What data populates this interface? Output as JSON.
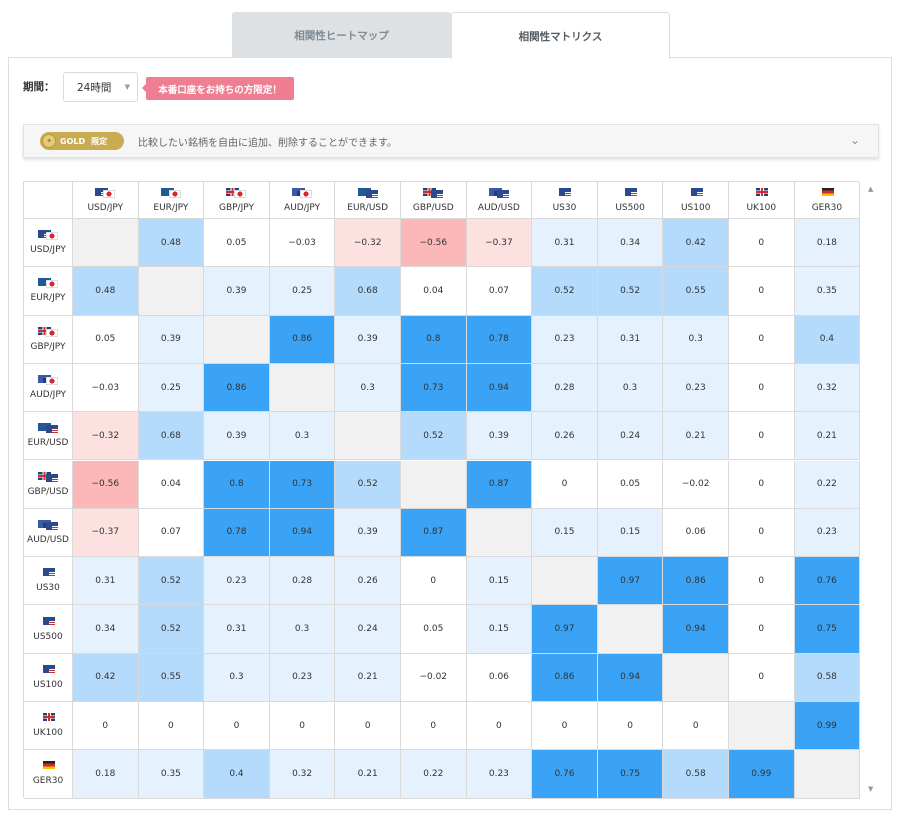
{
  "tabs": [
    {
      "label": "相関性ヒートマップ",
      "active": false
    },
    {
      "label": "相関性マトリクス",
      "active": true
    }
  ],
  "period": {
    "label": "期間：",
    "value": "24時間"
  },
  "promo": {
    "label": "本番口座をお持ちの方限定！"
  },
  "info": {
    "badge_label": "GOLD",
    "badge_limited": "限定",
    "text": "比較したい銘柄を自由に追加、削除することができます。"
  },
  "colors": {
    "strong_pos": "#3aa3f5",
    "mid_pos": "#b4dbfb",
    "weak_pos": "#e5f2fd",
    "zero": "#ffffff",
    "weak_neg": "#fde0e0",
    "mid_neg": "#fcb8b8",
    "diagonal": "#f1f1f1"
  },
  "matrix": {
    "symbols": [
      {
        "label": "USD/JPY",
        "flags": [
          "us",
          "jp"
        ]
      },
      {
        "label": "EUR/JPY",
        "flags": [
          "eu",
          "jp"
        ]
      },
      {
        "label": "GBP/JPY",
        "flags": [
          "gb",
          "jp"
        ]
      },
      {
        "label": "AUD/JPY",
        "flags": [
          "au",
          "jp"
        ]
      },
      {
        "label": "EUR/USD",
        "flags": [
          "eu",
          "us"
        ]
      },
      {
        "label": "GBP/USD",
        "flags": [
          "gb",
          "us"
        ]
      },
      {
        "label": "AUD/USD",
        "flags": [
          "au",
          "us"
        ]
      },
      {
        "label": "US30",
        "flags": [
          "us"
        ]
      },
      {
        "label": "US500",
        "flags": [
          "us"
        ]
      },
      {
        "label": "US100",
        "flags": [
          "us"
        ]
      },
      {
        "label": "UK100",
        "flags": [
          "gb"
        ]
      },
      {
        "label": "GER30",
        "flags": [
          "de"
        ]
      }
    ],
    "values": [
      [
        null,
        "0.48",
        "0.05",
        "−0.03",
        "−0.32",
        "−0.56",
        "−0.37",
        "0.31",
        "0.34",
        "0.42",
        "0",
        "0.18"
      ],
      [
        "0.48",
        null,
        "0.39",
        "0.25",
        "0.68",
        "0.04",
        "0.07",
        "0.52",
        "0.52",
        "0.55",
        "0",
        "0.35"
      ],
      [
        "0.05",
        "0.39",
        null,
        "0.86",
        "0.39",
        "0.8",
        "0.78",
        "0.23",
        "0.31",
        "0.3",
        "0",
        "0.4"
      ],
      [
        "−0.03",
        "0.25",
        "0.86",
        null,
        "0.3",
        "0.73",
        "0.94",
        "0.28",
        "0.3",
        "0.23",
        "0",
        "0.32"
      ],
      [
        "−0.32",
        "0.68",
        "0.39",
        "0.3",
        null,
        "0.52",
        "0.39",
        "0.26",
        "0.24",
        "0.21",
        "0",
        "0.21"
      ],
      [
        "−0.56",
        "0.04",
        "0.8",
        "0.73",
        "0.52",
        null,
        "0.87",
        "0",
        "0.05",
        "−0.02",
        "0",
        "0.22"
      ],
      [
        "−0.37",
        "0.07",
        "0.78",
        "0.94",
        "0.39",
        "0.87",
        null,
        "0.15",
        "0.15",
        "0.06",
        "0",
        "0.23"
      ],
      [
        "0.31",
        "0.52",
        "0.23",
        "0.28",
        "0.26",
        "0",
        "0.15",
        null,
        "0.97",
        "0.86",
        "0",
        "0.76"
      ],
      [
        "0.34",
        "0.52",
        "0.31",
        "0.3",
        "0.24",
        "0.05",
        "0.15",
        "0.97",
        null,
        "0.94",
        "0",
        "0.75"
      ],
      [
        "0.42",
        "0.55",
        "0.3",
        "0.23",
        "0.21",
        "−0.02",
        "0.06",
        "0.86",
        "0.94",
        null,
        "0",
        "0.58"
      ],
      [
        "0",
        "0",
        "0",
        "0",
        "0",
        "0",
        "0",
        "0",
        "0",
        "0",
        null,
        "0.99"
      ],
      [
        "0.18",
        "0.35",
        "0.4",
        "0.32",
        "0.21",
        "0.22",
        "0.23",
        "0.76",
        "0.75",
        "0.58",
        "0.99",
        null
      ]
    ]
  }
}
